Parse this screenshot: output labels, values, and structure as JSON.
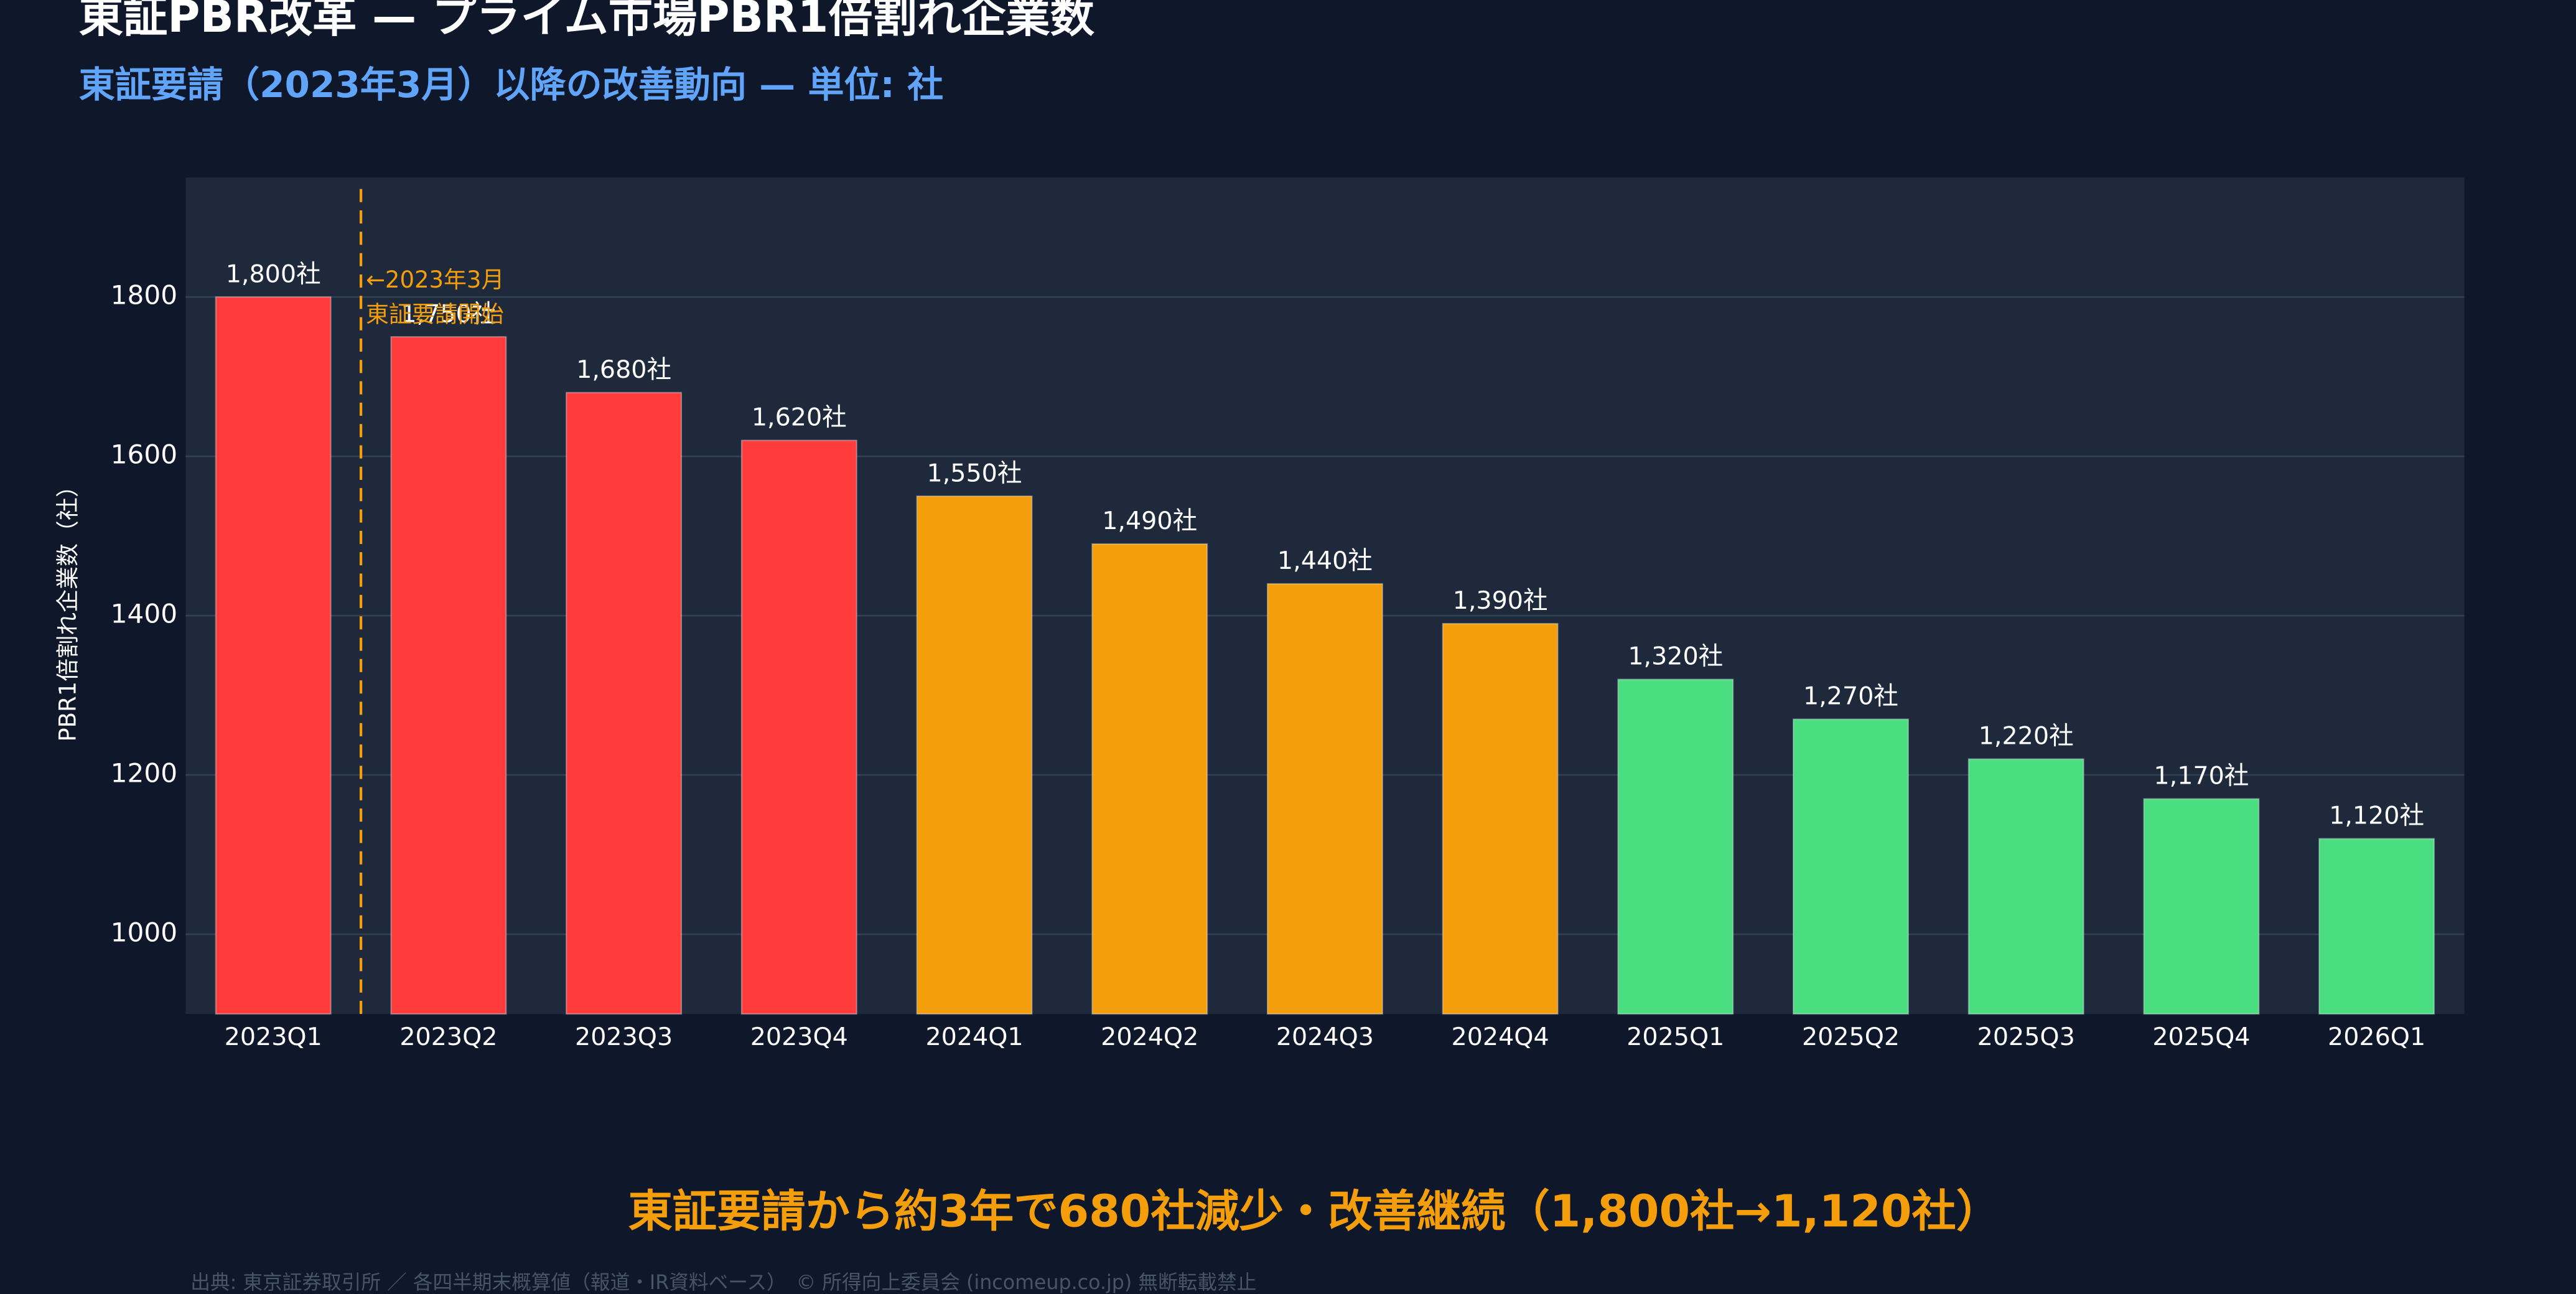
{
  "chart_data": {
    "type": "bar",
    "title": "東証PBR改革 — プライム市場PBR1倍割れ企業数",
    "subtitle": "東証要請（2023年3月）以降の改善動向 — 単位: 社",
    "y_label": "PBR1倍割れ企業数（社）",
    "categories": [
      "2023Q1",
      "2023Q2",
      "2023Q3",
      "2023Q4",
      "2024Q1",
      "2024Q2",
      "2024Q3",
      "2024Q4",
      "2025Q1",
      "2025Q2",
      "2025Q3",
      "2025Q4",
      "2026Q1"
    ],
    "values": [
      1800,
      1750,
      1680,
      1620,
      1550,
      1490,
      1440,
      1390,
      1320,
      1270,
      1220,
      1170,
      1120
    ],
    "value_labels": [
      "1,800社",
      "1,750社",
      "1,680社",
      "1,620社",
      "1,550社",
      "1,490社",
      "1,440社",
      "1,390社",
      "1,320社",
      "1,270社",
      "1,220社",
      "1,170社",
      "1,120社"
    ],
    "colors": [
      "#ff3b3b",
      "#ff3b3b",
      "#ff3b3b",
      "#ff3b3b",
      "#f59e0b",
      "#f59e0b",
      "#f59e0b",
      "#f59e0b",
      "#4ade80",
      "#4ade80",
      "#4ade80",
      "#4ade80",
      "#4ade80"
    ],
    "ylim": [
      900,
      1950
    ],
    "yticks": [
      1000,
      1200,
      1400,
      1600,
      1800
    ],
    "grid": true,
    "annotation": [
      "←2023年3月",
      "東証要請開始"
    ],
    "headline": "東証要請から約3年で680社減少・改善継続（1,800社→1,120社）",
    "footer": "出典: 東京証券取引所 ／ 各四半期末概算値（報道・IR資料ベース）　© 所得向上委員会 (incomeup.co.jp) 無断転載禁止"
  }
}
